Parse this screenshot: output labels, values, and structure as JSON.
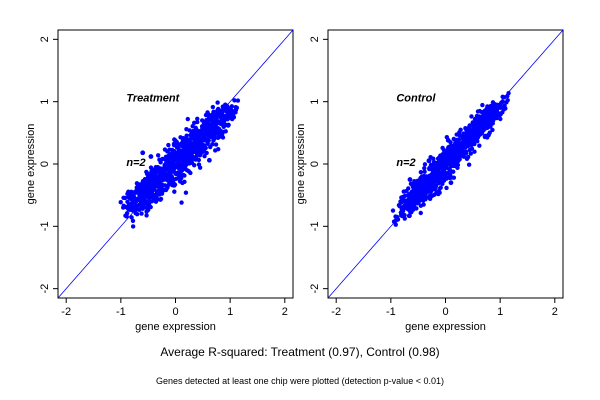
{
  "chart_data": [
    {
      "type": "scatter",
      "name": "treatment-panel",
      "annotation": "Treatment",
      "annotation_pos": [
        -0.9,
        1.0
      ],
      "n_label": "n=2",
      "n_label_pos": [
        -0.9,
        -0.03
      ],
      "xlabel": "gene expression",
      "ylabel": "gene expression",
      "xlim": [
        -2.15,
        2.15
      ],
      "ylim": [
        -2.15,
        2.15
      ],
      "xticks": [
        -2,
        -1,
        0,
        1,
        2
      ],
      "yticks": [
        -2,
        -1,
        0,
        1,
        2
      ],
      "grid": false,
      "reference_line": {
        "slope": 1,
        "intercept": 0
      },
      "cloud": {
        "from": -1.05,
        "to": 1.2,
        "spread": 0.13,
        "lean_slope": 0.85
      },
      "outliers": [
        {
          "x": 0.62,
          "y": 0.06
        },
        {
          "x": -0.6,
          "y": 0.18
        },
        {
          "x": -0.45,
          "y": 0.12
        },
        {
          "x": -0.5,
          "y": -0.48
        },
        {
          "x": 0.55,
          "y": 0.38
        }
      ]
    },
    {
      "type": "scatter",
      "name": "control-panel",
      "annotation": "Control",
      "annotation_pos": [
        -0.9,
        1.0
      ],
      "n_label": "n=2",
      "n_label_pos": [
        -0.9,
        -0.03
      ],
      "xlabel": "gene expression",
      "ylabel": "gene expression",
      "xlim": [
        -2.15,
        2.15
      ],
      "ylim": [
        -2.15,
        2.15
      ],
      "xticks": [
        -2,
        -1,
        0,
        1,
        2
      ],
      "yticks": [
        -2,
        -1,
        0,
        1,
        2
      ],
      "grid": false,
      "reference_line": {
        "slope": 1,
        "intercept": 0
      },
      "cloud": {
        "from": -1.0,
        "to": 1.2,
        "spread": 0.1,
        "lean_slope": 0.95
      },
      "outliers": [
        {
          "x": -0.65,
          "y": -0.25
        },
        {
          "x": 0.1,
          "y": -0.3
        },
        {
          "x": 0.05,
          "y": 0.38
        },
        {
          "x": -0.3,
          "y": 0.05
        }
      ]
    }
  ],
  "caption": "Average R-squared: Treatment (0.97), Control (0.98)",
  "footnote": "Genes detected at least one chip were plotted (detection p-value < 0.01)",
  "colors": {
    "points": "#0000ff",
    "line": "#0000ff",
    "axes": "#000000",
    "background": "#ffffff"
  }
}
